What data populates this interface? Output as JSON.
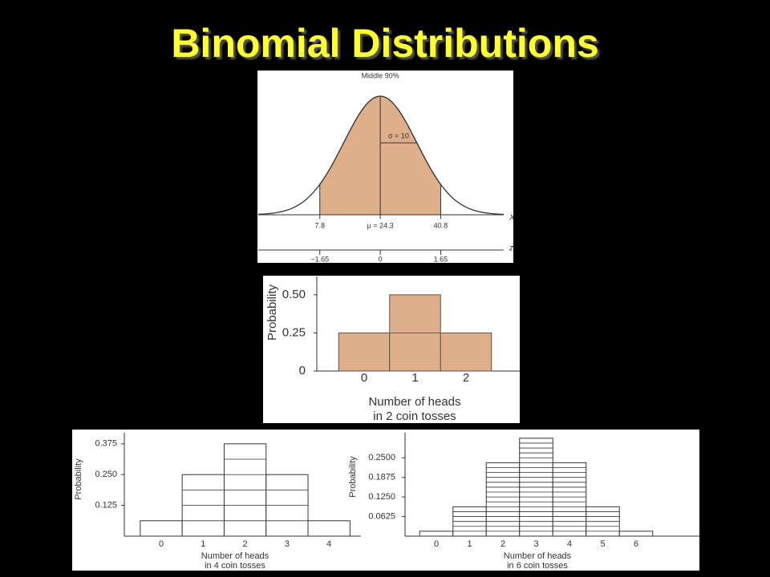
{
  "slide": {
    "title": "Binomial Distributions"
  },
  "chart_data": [
    {
      "type": "normal",
      "title": "Middle 90%",
      "mean": 24.3,
      "sd": 10,
      "sd_label": "σ = 10",
      "fill": "#dfae8a",
      "xlabel": "X",
      "zlabel": "z",
      "xlim": [
        -9,
        58
      ],
      "xticks": [
        7.8,
        {
          "value": 24.3,
          "label": "μ = 24.3"
        },
        40.8
      ],
      "zticks": [
        {
          "value": -1.65,
          "label": "−1.65"
        },
        0,
        1.65
      ]
    },
    {
      "type": "bar",
      "categories": [
        "0",
        "1",
        "2"
      ],
      "values": [
        0.25,
        0.5,
        0.25
      ],
      "color": "#dfae8a",
      "stripe": 0.25,
      "ylabel": "Probability",
      "xlabel": [
        "Number of heads",
        "in 2 coin tosses"
      ],
      "ylim": [
        0,
        0.62
      ],
      "yticks": [
        0,
        0.25,
        {
          "value": 0.5,
          "label": "0.50"
        }
      ]
    },
    {
      "type": "bar",
      "categories": [
        "0",
        "1",
        "2",
        "3",
        "4"
      ],
      "values": [
        0.0625,
        0.25,
        0.375,
        0.25,
        0.0625
      ],
      "color": "#ffffff",
      "stripe": 0.0625,
      "ylabel": "Probability",
      "xlabel": [
        "Number of heads",
        "in 4 coin tosses"
      ],
      "ylim": [
        0,
        0.42
      ],
      "yticks": [
        0.125,
        {
          "value": 0.25,
          "label": "0.250"
        },
        0.375
      ]
    },
    {
      "type": "bar",
      "categories": [
        "0",
        "1",
        "2",
        "3",
        "4",
        "5",
        "6"
      ],
      "values": [
        0.015625,
        0.09375,
        0.234375,
        0.3125,
        0.234375,
        0.09375,
        0.015625
      ],
      "color": "#ffffff",
      "stripe": 0.015625,
      "ylabel": "Probability",
      "xlabel": [
        "Number of heads",
        "in 6 coin tosses"
      ],
      "ylim": [
        0,
        0.33
      ],
      "yticks": [
        0.0625,
        {
          "value": 0.125,
          "label": "0.1250"
        },
        0.1875,
        {
          "value": 0.25,
          "label": "0.2500"
        }
      ]
    }
  ]
}
